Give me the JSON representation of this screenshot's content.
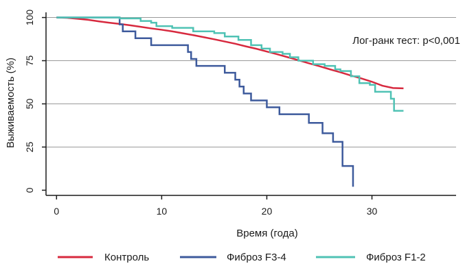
{
  "chart_data": {
    "type": "line",
    "title": "",
    "xlabel": "Время (года)",
    "ylabel": "Выживаемость (%)",
    "xlim": [
      -1,
      38
    ],
    "ylim": [
      -3,
      103
    ],
    "x_ticks": [
      0,
      10,
      20,
      30
    ],
    "y_ticks": [
      0,
      25,
      50,
      75,
      100
    ],
    "grid": "horizontal",
    "legend_position": "bottom",
    "annotation": "Лог-ранк тест: p<0,001",
    "series": [
      {
        "name": "Контроль",
        "color": "#d7293e",
        "step": false,
        "points": [
          [
            0,
            100
          ],
          [
            1,
            99.8
          ],
          [
            2,
            99.3
          ],
          [
            3,
            98.7
          ],
          [
            4,
            97.8
          ],
          [
            5,
            97
          ],
          [
            6,
            96.3
          ],
          [
            7,
            95.5
          ],
          [
            8,
            94.6
          ],
          [
            9,
            93.7
          ],
          [
            10,
            92.9
          ],
          [
            11,
            92
          ],
          [
            12,
            90.9
          ],
          [
            13,
            89.8
          ],
          [
            14,
            88.6
          ],
          [
            15,
            87.4
          ],
          [
            16,
            86.1
          ],
          [
            17,
            84.8
          ],
          [
            18,
            83.3
          ],
          [
            19,
            81.9
          ],
          [
            20,
            80.3
          ],
          [
            21,
            78.7
          ],
          [
            22,
            77
          ],
          [
            23,
            75.3
          ],
          [
            24,
            73.5
          ],
          [
            25,
            71.8
          ],
          [
            26,
            70
          ],
          [
            27,
            68.3
          ],
          [
            28,
            66.4
          ],
          [
            29,
            64.7
          ],
          [
            30,
            62.8
          ],
          [
            31,
            60.5
          ],
          [
            32,
            59.2
          ],
          [
            33,
            59
          ]
        ]
      },
      {
        "name": "Фиброз F3-4",
        "color": "#3d5a9c",
        "step": true,
        "points": [
          [
            0,
            100
          ],
          [
            6,
            100
          ],
          [
            6,
            96
          ],
          [
            6.3,
            96
          ],
          [
            6.3,
            92
          ],
          [
            7.5,
            92
          ],
          [
            7.5,
            88
          ],
          [
            9,
            88
          ],
          [
            9,
            84
          ],
          [
            12.5,
            84
          ],
          [
            12.5,
            80
          ],
          [
            12.8,
            80
          ],
          [
            12.8,
            76
          ],
          [
            13.3,
            76
          ],
          [
            13.3,
            72
          ],
          [
            16,
            72
          ],
          [
            16,
            68
          ],
          [
            17,
            68
          ],
          [
            17,
            64
          ],
          [
            17.4,
            64
          ],
          [
            17.4,
            60
          ],
          [
            17.8,
            60
          ],
          [
            17.8,
            56
          ],
          [
            18.5,
            56
          ],
          [
            18.5,
            52
          ],
          [
            20,
            52
          ],
          [
            20,
            48
          ],
          [
            21.2,
            48
          ],
          [
            21.2,
            44
          ],
          [
            24,
            44
          ],
          [
            24,
            39
          ],
          [
            25.3,
            39
          ],
          [
            25.3,
            33
          ],
          [
            26.3,
            33
          ],
          [
            26.3,
            28
          ],
          [
            27.2,
            28
          ],
          [
            27.2,
            14
          ],
          [
            28.2,
            14
          ],
          [
            28.2,
            2
          ]
        ]
      },
      {
        "name": "Фиброз F1-2",
        "color": "#4fc2b4",
        "step": true,
        "points": [
          [
            0,
            100
          ],
          [
            6,
            100
          ],
          [
            6,
            99.5
          ],
          [
            8,
            99.5
          ],
          [
            8,
            98
          ],
          [
            9,
            98
          ],
          [
            9,
            97
          ],
          [
            9.5,
            97
          ],
          [
            9.5,
            95
          ],
          [
            11,
            95
          ],
          [
            11,
            94
          ],
          [
            13,
            94
          ],
          [
            13,
            92
          ],
          [
            15,
            92
          ],
          [
            15,
            91
          ],
          [
            16,
            91
          ],
          [
            16,
            89
          ],
          [
            17.3,
            89
          ],
          [
            17.3,
            87
          ],
          [
            18.5,
            87
          ],
          [
            18.5,
            84
          ],
          [
            19.5,
            84
          ],
          [
            19.5,
            82
          ],
          [
            20.3,
            82
          ],
          [
            20.3,
            80
          ],
          [
            21.5,
            80
          ],
          [
            21.5,
            79
          ],
          [
            22.2,
            79
          ],
          [
            22.2,
            77
          ],
          [
            23,
            77
          ],
          [
            23,
            75
          ],
          [
            24.4,
            75
          ],
          [
            24.4,
            73
          ],
          [
            25.5,
            73
          ],
          [
            25.5,
            72
          ],
          [
            26.5,
            72
          ],
          [
            26.5,
            70
          ],
          [
            27,
            70
          ],
          [
            27,
            69
          ],
          [
            28,
            69
          ],
          [
            28,
            66
          ],
          [
            28.8,
            66
          ],
          [
            28.8,
            62
          ],
          [
            29.8,
            62
          ],
          [
            29.8,
            61
          ],
          [
            30.3,
            61
          ],
          [
            30.3,
            57
          ],
          [
            31.8,
            57
          ],
          [
            31.8,
            53
          ],
          [
            32.1,
            53
          ],
          [
            32.1,
            46
          ],
          [
            33,
            46
          ]
        ]
      }
    ]
  }
}
